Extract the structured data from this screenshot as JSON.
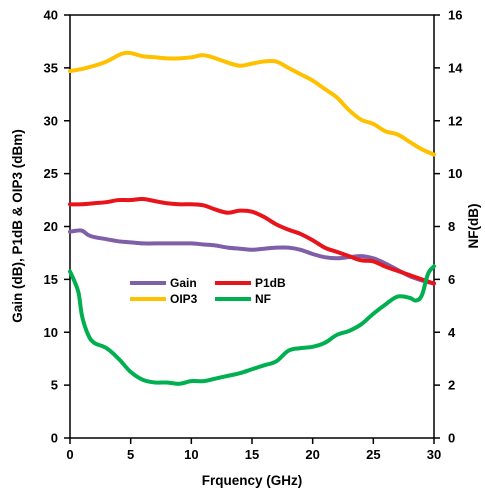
{
  "chart_data": {
    "type": "line",
    "title": "",
    "xlabel": "Frquency (GHz)",
    "ylabel": "Gain (dB), P1dB & OIP3 (dBm)",
    "y2label": "NF(dB)",
    "xlim": [
      0,
      30
    ],
    "ylim": [
      0,
      40
    ],
    "y2lim": [
      0,
      16
    ],
    "xticks": [
      "0",
      "5",
      "10",
      "15",
      "20",
      "25",
      "30"
    ],
    "yticks": [
      "0",
      "5",
      "10",
      "15",
      "20",
      "25",
      "30",
      "35",
      "40"
    ],
    "y2ticks": [
      "0",
      "2",
      "4",
      "6",
      "8",
      "10",
      "12",
      "14",
      "16"
    ],
    "grid": false,
    "legend_position": "center-left",
    "series": [
      {
        "name": "Gain",
        "color": "#7f5fa8",
        "axis": "left",
        "x": [
          0,
          0.5,
          1,
          1.5,
          2,
          3,
          4,
          5,
          6,
          7,
          8,
          9,
          10,
          11,
          12,
          13,
          14,
          15,
          16,
          17,
          18,
          19,
          20,
          21,
          22,
          23,
          24,
          25,
          26,
          27,
          28,
          29,
          30
        ],
        "y": [
          19.5,
          19.6,
          19.6,
          19.2,
          19.0,
          18.8,
          18.6,
          18.5,
          18.4,
          18.4,
          18.4,
          18.4,
          18.4,
          18.3,
          18.2,
          18.0,
          17.9,
          17.8,
          17.9,
          18.0,
          18.0,
          17.8,
          17.4,
          17.1,
          17.0,
          17.1,
          17.2,
          17.0,
          16.5,
          15.9,
          15.3,
          14.9,
          14.6
        ]
      },
      {
        "name": "P1dB",
        "color": "#e8141b",
        "axis": "left",
        "x": [
          0,
          1,
          2,
          3,
          4,
          5,
          6,
          7,
          8,
          9,
          10,
          11,
          12,
          13,
          14,
          15,
          16,
          17,
          18,
          19,
          20,
          21,
          22,
          23,
          24,
          25,
          26,
          27,
          28,
          29,
          30
        ],
        "y": [
          22.1,
          22.1,
          22.2,
          22.3,
          22.5,
          22.5,
          22.6,
          22.4,
          22.2,
          22.1,
          22.1,
          22.0,
          21.6,
          21.3,
          21.5,
          21.4,
          20.9,
          20.2,
          19.7,
          19.3,
          18.7,
          18.0,
          17.6,
          17.2,
          16.8,
          16.7,
          16.2,
          15.8,
          15.4,
          15.0,
          14.6
        ]
      },
      {
        "name": "OIP3",
        "color": "#ffc000",
        "axis": "left",
        "x": [
          0,
          1,
          2,
          3,
          4,
          4.5,
          5,
          6,
          7,
          8,
          9,
          10,
          11,
          12,
          13,
          14,
          15,
          16,
          17,
          18,
          19,
          20,
          21,
          22,
          23,
          24,
          25,
          26,
          27,
          28,
          29,
          30
        ],
        "y": [
          34.7,
          34.9,
          35.2,
          35.6,
          36.2,
          36.4,
          36.4,
          36.1,
          36.0,
          35.9,
          35.9,
          36.0,
          36.2,
          35.9,
          35.5,
          35.2,
          35.4,
          35.6,
          35.6,
          35.0,
          34.4,
          33.8,
          33.0,
          32.2,
          31.0,
          30.1,
          29.7,
          29.0,
          28.7,
          28.0,
          27.3,
          26.8
        ]
      },
      {
        "name": "NF",
        "color": "#00b050",
        "axis": "right",
        "x": [
          0,
          0.3,
          0.7,
          1,
          1.5,
          2,
          3,
          4,
          5,
          6,
          7,
          8,
          9,
          10,
          11,
          12,
          13,
          14,
          15,
          16,
          17,
          18,
          19,
          20,
          21,
          22,
          23,
          24,
          25,
          26,
          27,
          28,
          28.5,
          29,
          29.5,
          30
        ],
        "y": [
          6.3,
          6.0,
          5.5,
          4.6,
          3.9,
          3.6,
          3.4,
          3.0,
          2.5,
          2.2,
          2.1,
          2.1,
          2.05,
          2.15,
          2.15,
          2.25,
          2.35,
          2.45,
          2.6,
          2.75,
          2.9,
          3.3,
          3.4,
          3.45,
          3.6,
          3.9,
          4.05,
          4.3,
          4.7,
          5.05,
          5.35,
          5.3,
          5.2,
          5.4,
          6.2,
          6.5
        ]
      }
    ]
  }
}
